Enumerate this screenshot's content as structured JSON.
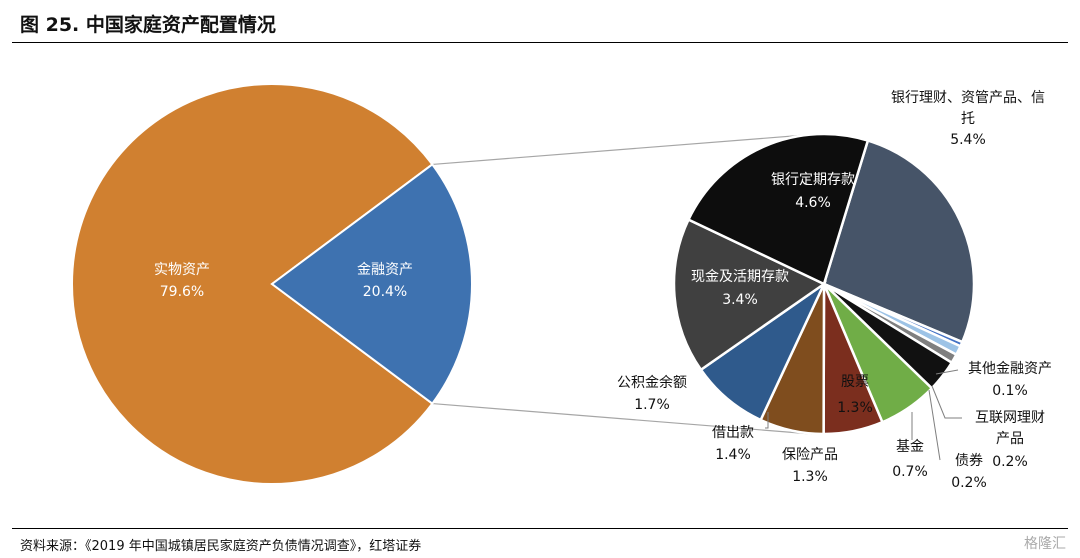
{
  "figure_title": "图 25. 中国家庭资产配置情况",
  "source": "资料来源：《2019 年中国城镇居民家庭资产负债情况调查》，红塔证券",
  "watermark": "格隆汇",
  "chart_data": [
    {
      "type": "pie",
      "slices": [
        {
          "label": "实物资产",
          "value": 79.6,
          "display": "79.6%",
          "color": "#D08030",
          "label_color": "#ffffff"
        },
        {
          "label": "金融资产",
          "value": 20.4,
          "display": "20.4%",
          "color": "#3E72B0",
          "label_color": "#ffffff"
        }
      ]
    },
    {
      "type": "pie",
      "slices": [
        {
          "label": "银行理财、资管产品、信托",
          "value": 5.4,
          "display": "5.4%",
          "color": "#465468",
          "label_color": "#111111"
        },
        {
          "label": "其他金融资产",
          "value": 0.1,
          "display": "0.1%",
          "color": "#4472C4",
          "label_color": "#111111"
        },
        {
          "label": "互联网理财产品",
          "value": 0.2,
          "display": "0.2%",
          "color": "#9DC3E6",
          "label_color": "#111111"
        },
        {
          "label": "债券",
          "value": 0.2,
          "display": "0.2%",
          "color": "#7F7F7F",
          "label_color": "#111111"
        },
        {
          "label": "基金",
          "value": 0.7,
          "display": "0.7%",
          "color": "#111111",
          "label_color": "#111111"
        },
        {
          "label": "股票",
          "value": 1.3,
          "display": "1.3%",
          "color": "#70AD47",
          "label_color": "#111111"
        },
        {
          "label": "保险产品",
          "value": 1.3,
          "display": "1.3%",
          "color": "#7B2E1E",
          "label_color": "#111111"
        },
        {
          "label": "借出款",
          "value": 1.4,
          "display": "1.4%",
          "color": "#7F4D1E",
          "label_color": "#111111"
        },
        {
          "label": "公积金余额",
          "value": 1.7,
          "display": "1.7%",
          "color": "#2F5A8C",
          "label_color": "#111111"
        },
        {
          "label": "现金及活期存款",
          "value": 3.4,
          "display": "3.4%",
          "color": "#404040",
          "label_color": "#ffffff"
        },
        {
          "label": "银行定期存款",
          "value": 4.6,
          "display": "4.6%",
          "color": "#0D0D0D",
          "label_color": "#ffffff"
        }
      ]
    }
  ]
}
